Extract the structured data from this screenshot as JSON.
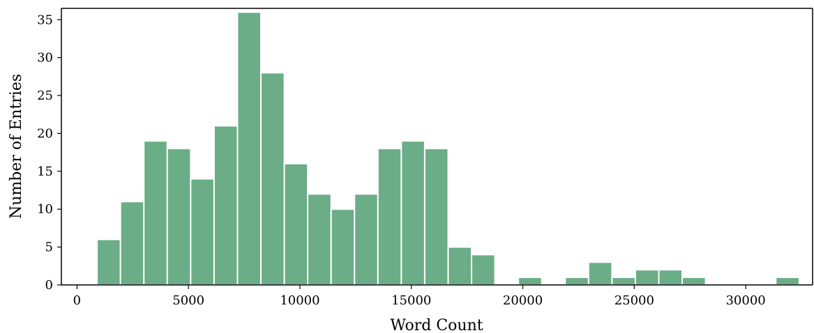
{
  "chart_data": {
    "type": "bar",
    "xlabel": "Word Count",
    "ylabel": "Number of Entries",
    "xlim": [
      -700,
      33000
    ],
    "ylim": [
      0,
      36.5
    ],
    "bin_width": 1050,
    "bin_start": 900,
    "values": [
      6,
      11,
      19,
      18,
      14,
      21,
      36,
      28,
      16,
      12,
      10,
      12,
      18,
      19,
      18,
      5,
      4,
      0,
      1,
      0,
      1,
      3,
      1,
      2,
      2,
      1,
      0,
      0,
      0,
      1
    ],
    "xticks": [
      0,
      5000,
      10000,
      15000,
      20000,
      25000,
      30000
    ],
    "yticks": [
      0,
      5,
      10,
      15,
      20,
      25,
      30,
      35
    ],
    "bar_color": "#6aad87",
    "bar_edge_color": "#ffffff"
  }
}
